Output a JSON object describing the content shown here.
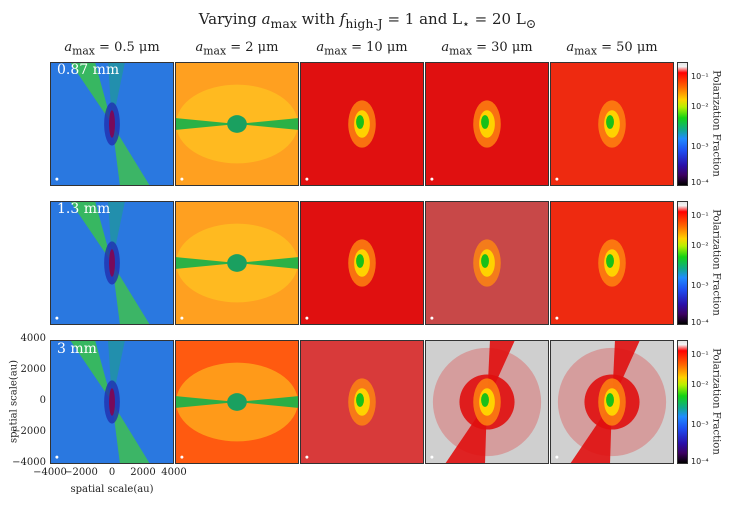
{
  "title": {
    "prefix": "Varying ",
    "a": "a",
    "max_sub": "max",
    "with": " with ",
    "f": "f",
    "high_sub": "high-J",
    "rest": " = 1 and L",
    "star": "⋆",
    "eq": " = 20 L",
    "sun": "⊙"
  },
  "columns": [
    {
      "label_a": "a",
      "label_sub": "max",
      "label_val": " = 0.5 μm"
    },
    {
      "label_a": "a",
      "label_sub": "max",
      "label_val": " = 2 μm"
    },
    {
      "label_a": "a",
      "label_sub": "max",
      "label_val": " = 10 μm"
    },
    {
      "label_a": "a",
      "label_sub": "max",
      "label_val": " = 30 μm"
    },
    {
      "label_a": "a",
      "label_sub": "max",
      "label_val": " = 50 μm"
    }
  ],
  "rows": [
    {
      "wavelength": "0.87 mm"
    },
    {
      "wavelength": "1.3 mm"
    },
    {
      "wavelength": "3 mm"
    }
  ],
  "colorbar": {
    "label": "Polarization Fraction",
    "ticks": [
      "10⁻¹",
      "10⁻²",
      "10⁻³",
      "10⁻⁴"
    ]
  },
  "axes": {
    "ylabel": "spatial scale(au)",
    "xlabel": "spatial scale(au)",
    "yticks": [
      "4000",
      "2000",
      "0",
      "−2000",
      "−4000"
    ],
    "xticks": [
      "−4000",
      "−2000",
      "0",
      "2000",
      "4000"
    ]
  },
  "colors": {
    "col0": "#1e6fd8",
    "col1": "#ff9a1a",
    "col2": "#e01010",
    "col3": "#d81818",
    "col4": "#ee2a10"
  }
}
